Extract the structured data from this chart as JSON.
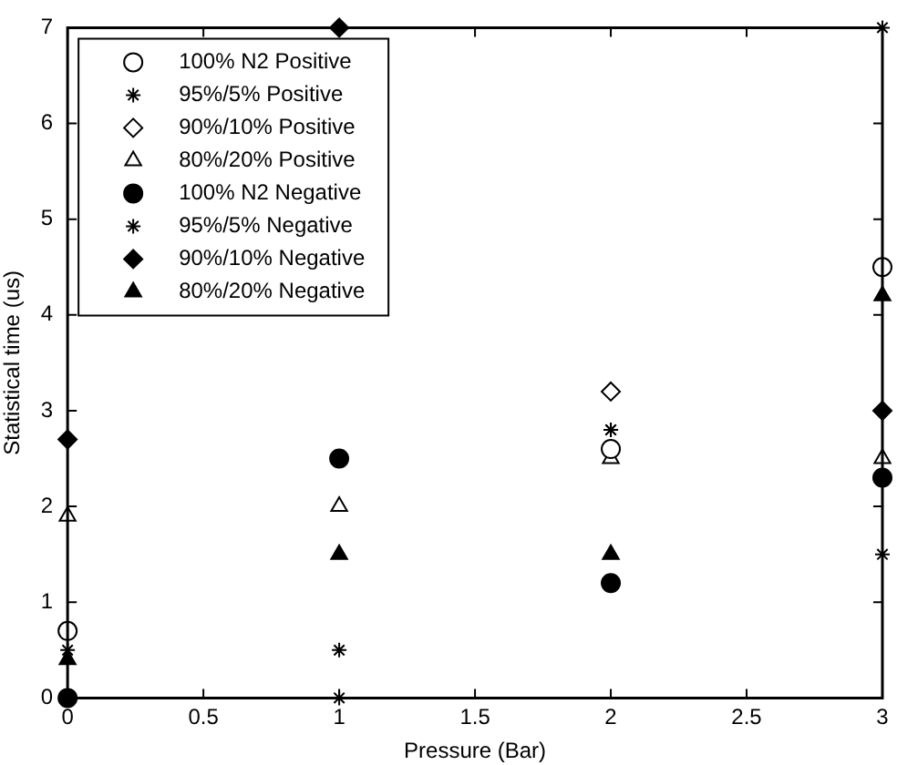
{
  "chart_data": {
    "type": "scatter",
    "xlabel": "Pressure (Bar)",
    "ylabel": "Statistical time (us)",
    "x": [
      0,
      1,
      2,
      3
    ],
    "xlim": [
      0,
      3
    ],
    "xticks": [
      0,
      0.5,
      1,
      1.5,
      2,
      2.5,
      3
    ],
    "ylim": [
      0,
      7
    ],
    "yticks": [
      0,
      1,
      2,
      3,
      4,
      5,
      6,
      7
    ],
    "grid": false,
    "legend": "top left",
    "series": [
      {
        "name": "100% N2 Positive",
        "color": "#ffffff",
        "marker": "circle",
        "values": [
          0.7,
          null,
          2.6,
          4.5
        ]
      },
      {
        "name": "95%/5% Positive",
        "color": "#000000",
        "marker": "cross",
        "values": [
          null,
          0.5,
          2.8,
          1.5
        ]
      },
      {
        "name": "90%/10% Positive",
        "color": "#ffffff",
        "marker": "diamond",
        "values": [
          null,
          null,
          3.2,
          null
        ]
      },
      {
        "name": "80%/20% Positive",
        "color": "#ffffff",
        "marker": "triangle",
        "values": [
          1.9,
          2.0,
          2.5,
          2.5
        ]
      },
      {
        "name": "100% N2 Negative",
        "color": "#000000",
        "marker": "circle",
        "values": [
          0,
          2.5,
          1.2,
          2.3
        ]
      },
      {
        "name": "95%/5% Negative",
        "color": "#000000",
        "marker": "cross",
        "values": [
          0.5,
          0,
          2.8,
          7
        ]
      },
      {
        "name": "90%/10% Negative",
        "color": "#000000",
        "marker": "diamond",
        "values": [
          2.7,
          7,
          null,
          3.0
        ]
      },
      {
        "name": "80%/20% Negative",
        "color": "#000000",
        "marker": "triangle",
        "values": [
          0.4,
          1.5,
          1.5,
          4.2
        ]
      }
    ]
  }
}
